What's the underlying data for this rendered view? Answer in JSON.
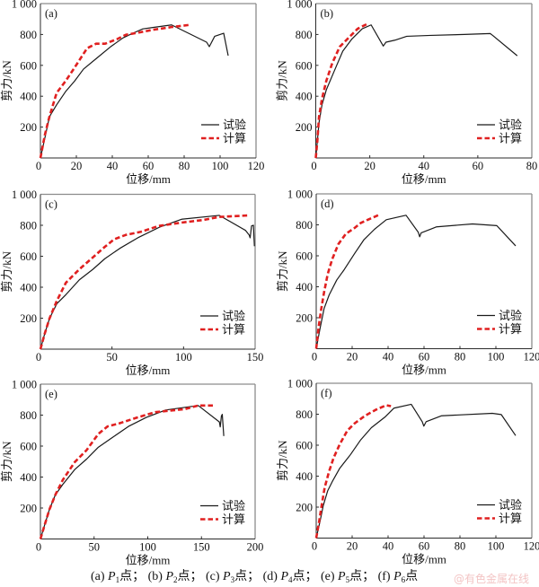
{
  "figure": {
    "caption": {
      "items": [
        {
          "label": "(a)",
          "var": "P",
          "sub": "1",
          "suffix": "点"
        },
        {
          "label": "(b)",
          "var": "P",
          "sub": "2",
          "suffix": "点"
        },
        {
          "label": "(c)",
          "var": "P",
          "sub": "3",
          "suffix": "点"
        },
        {
          "label": "(d)",
          "var": "P",
          "sub": "4",
          "suffix": "点"
        },
        {
          "label": "(e)",
          "var": "P",
          "sub": "5",
          "suffix": "点"
        },
        {
          "label": "(f)",
          "var": "P",
          "sub": "6",
          "suffix": "点"
        }
      ],
      "separator": "； "
    },
    "watermark": "@有色金属在线"
  },
  "chart_data": [
    {
      "type": "line",
      "panel_label": "(a)",
      "xlabel": "位移/mm",
      "ylabel": "剪力/kN",
      "xlim": [
        0,
        120
      ],
      "ylim": [
        0,
        1000
      ],
      "x_ticks": [
        0,
        20,
        40,
        60,
        80,
        100,
        120
      ],
      "y_ticks": [
        200,
        400,
        600,
        800,
        1000
      ],
      "y_tick_labels": [
        "200",
        "400",
        "600",
        "800",
        "1 000"
      ],
      "grid": false,
      "legend": "bottom-right",
      "series": [
        {
          "name": "试验",
          "style": "solid",
          "color": "#1a1a1a",
          "points": [
            [
              0,
              0
            ],
            [
              2.5,
              131
            ],
            [
              5,
              267
            ],
            [
              9,
              344
            ],
            [
              14,
              430
            ],
            [
              19,
              498
            ],
            [
              24,
              576
            ],
            [
              31,
              643
            ],
            [
              39,
              720
            ],
            [
              46,
              778
            ],
            [
              52,
              811
            ],
            [
              57,
              836
            ],
            [
              63,
              846
            ],
            [
              73,
              862
            ],
            [
              92.5,
              750
            ],
            [
              94,
              721
            ],
            [
              97,
              788
            ],
            [
              102,
              808
            ],
            [
              104.5,
              663
            ]
          ]
        },
        {
          "name": "计算",
          "style": "dashed",
          "color": "#e02020",
          "points": [
            [
              0,
              0
            ],
            [
              2.5,
              151
            ],
            [
              5,
              267
            ],
            [
              9,
              421
            ],
            [
              14,
              498
            ],
            [
              19,
              585
            ],
            [
              26,
              711
            ],
            [
              31,
              740
            ],
            [
              36,
              740
            ],
            [
              42.5,
              769
            ],
            [
              47.5,
              798
            ],
            [
              54,
              811
            ],
            [
              62.5,
              830
            ],
            [
              73,
              848
            ],
            [
              83,
              862
            ]
          ]
        }
      ]
    },
    {
      "type": "line",
      "panel_label": "(b)",
      "xlabel": "位移/mm",
      "ylabel": "剪力/kN",
      "xlim": [
        0,
        80
      ],
      "ylim": [
        0,
        1000
      ],
      "x_ticks": [
        0,
        20,
        40,
        60,
        80
      ],
      "y_ticks": [
        200,
        400,
        600,
        800,
        1000
      ],
      "y_tick_labels": [
        "200",
        "400",
        "600",
        "800",
        "1 000"
      ],
      "grid": false,
      "legend": "bottom-right",
      "series": [
        {
          "name": "试验",
          "style": "solid",
          "color": "#1a1a1a",
          "points": [
            [
              0,
              0
            ],
            [
              0.6,
              112
            ],
            [
              1.2,
              228
            ],
            [
              2.3,
              344
            ],
            [
              3.9,
              441
            ],
            [
              6.7,
              557
            ],
            [
              10,
              692
            ],
            [
              13.3,
              769
            ],
            [
              17.2,
              837
            ],
            [
              20.5,
              862
            ],
            [
              25,
              725
            ],
            [
              26,
              750
            ],
            [
              29.3,
              763
            ],
            [
              33.7,
              788
            ],
            [
              42.5,
              794
            ],
            [
              55,
              800
            ],
            [
              64.6,
              806
            ],
            [
              65.5,
              794
            ],
            [
              74.6,
              662
            ]
          ]
        },
        {
          "name": "计算",
          "style": "dashed",
          "color": "#e02020",
          "points": [
            [
              0,
              0
            ],
            [
              0.6,
              112
            ],
            [
              1.2,
              267
            ],
            [
              2.3,
              383
            ],
            [
              3.9,
              499
            ],
            [
              6.1,
              614
            ],
            [
              8.9,
              721
            ],
            [
              12.2,
              779
            ],
            [
              15.5,
              837
            ],
            [
              18.8,
              866
            ]
          ]
        }
      ]
    },
    {
      "type": "line",
      "panel_label": "(c)",
      "xlabel": "位移/mm",
      "ylabel": "剪力/kN",
      "xlim": [
        0,
        150
      ],
      "ylim": [
        0,
        1000
      ],
      "x_ticks": [
        0,
        50,
        100,
        150
      ],
      "y_ticks": [
        200,
        400,
        600,
        800,
        1000
      ],
      "y_tick_labels": [
        "200",
        "400",
        "600",
        "800",
        "1 000"
      ],
      "grid": false,
      "legend": "bottom-right",
      "series": [
        {
          "name": "试验",
          "style": "solid",
          "color": "#1a1a1a",
          "points": [
            [
              0,
              0
            ],
            [
              3,
              100
            ],
            [
              6.3,
              197
            ],
            [
              11.5,
              294
            ],
            [
              17.8,
              352
            ],
            [
              27.2,
              448
            ],
            [
              36.7,
              516
            ],
            [
              45,
              584
            ],
            [
              55.5,
              651
            ],
            [
              68,
              719
            ],
            [
              83,
              787
            ],
            [
              98.6,
              839
            ],
            [
              125,
              864
            ],
            [
              143.3,
              767
            ],
            [
              145.8,
              738
            ],
            [
              146.5,
              719
            ],
            [
              147.5,
              796
            ],
            [
              148.8,
              800
            ],
            [
              149.2,
              719
            ],
            [
              149.5,
              665
            ]
          ]
        },
        {
          "name": "计算",
          "style": "dashed",
          "color": "#e02020",
          "points": [
            [
              0,
              0
            ],
            [
              3,
              100
            ],
            [
              6.3,
              197
            ],
            [
              11.5,
              313
            ],
            [
              17.8,
              429
            ],
            [
              27.2,
              516
            ],
            [
              36.7,
              593
            ],
            [
              45,
              661
            ],
            [
              51.4,
              709
            ],
            [
              59.7,
              738
            ],
            [
              70.2,
              758
            ],
            [
              82.8,
              796
            ],
            [
              97.5,
              816
            ],
            [
              114.3,
              835
            ],
            [
              124.7,
              854
            ],
            [
              146,
              864
            ]
          ]
        }
      ]
    },
    {
      "type": "line",
      "panel_label": "(d)",
      "xlabel": "位移/mm",
      "ylabel": "剪力/kN",
      "xlim": [
        0,
        120
      ],
      "ylim": [
        0,
        1000
      ],
      "x_ticks": [
        0,
        20,
        40,
        60,
        80,
        100,
        120
      ],
      "y_ticks": [
        200,
        400,
        600,
        800,
        1000
      ],
      "y_tick_labels": [
        "200",
        "400",
        "600",
        "800",
        "1 000"
      ],
      "grid": false,
      "legend": "bottom-right",
      "series": [
        {
          "name": "试验",
          "style": "solid",
          "color": "#1a1a1a",
          "points": [
            [
              0,
              0
            ],
            [
              2.2,
              135
            ],
            [
              4.4,
              260
            ],
            [
              7.2,
              347
            ],
            [
              11.4,
              443
            ],
            [
              15.6,
              511
            ],
            [
              21.5,
              617
            ],
            [
              26.5,
              703
            ],
            [
              32.4,
              771
            ],
            [
              39,
              833
            ],
            [
              50,
              862
            ],
            [
              56.8,
              752
            ],
            [
              57.6,
              723
            ],
            [
              58.4,
              748
            ],
            [
              67,
              787
            ],
            [
              87,
              806
            ],
            [
              100.5,
              795
            ],
            [
              111,
              664
            ]
          ]
        },
        {
          "name": "计算",
          "style": "dashed",
          "color": "#e02020",
          "points": [
            [
              0,
              0
            ],
            [
              1.3,
              135
            ],
            [
              2.7,
              250
            ],
            [
              4.4,
              366
            ],
            [
              6.4,
              482
            ],
            [
              8.9,
              578
            ],
            [
              12.3,
              675
            ],
            [
              16.5,
              742
            ],
            [
              21.5,
              781
            ],
            [
              24.9,
              813
            ],
            [
              29.9,
              839
            ],
            [
              34.5,
              862
            ]
          ]
        }
      ]
    },
    {
      "type": "line",
      "panel_label": "(e)",
      "xlabel": "位移/mm",
      "ylabel": "剪力/kN",
      "xlim": [
        0,
        200
      ],
      "ylim": [
        0,
        1000
      ],
      "x_ticks": [
        0,
        50,
        100,
        150,
        200
      ],
      "y_ticks": [
        200,
        400,
        600,
        800,
        1000
      ],
      "y_tick_labels": [
        "200",
        "400",
        "600",
        "800",
        "1 000"
      ],
      "grid": false,
      "legend": "bottom-right",
      "series": [
        {
          "name": "试验",
          "style": "solid",
          "color": "#1a1a1a",
          "points": [
            [
              0,
              0
            ],
            [
              4,
              92
            ],
            [
              8.3,
              189
            ],
            [
              13.9,
              285
            ],
            [
              20.8,
              352
            ],
            [
              31.9,
              448
            ],
            [
              43,
              516
            ],
            [
              54,
              593
            ],
            [
              68,
              660
            ],
            [
              82,
              727
            ],
            [
              98.6,
              785
            ],
            [
              116.7,
              833
            ],
            [
              147,
              862
            ],
            [
              166.7,
              756
            ],
            [
              167.5,
              724
            ],
            [
              168.6,
              795
            ],
            [
              169.4,
              805
            ],
            [
              170.8,
              665
            ]
          ]
        },
        {
          "name": "计算",
          "style": "dashed",
          "color": "#e02020",
          "points": [
            [
              0,
              0
            ],
            [
              4,
              92
            ],
            [
              8.3,
              189
            ],
            [
              13.9,
              285
            ],
            [
              20.8,
              381
            ],
            [
              31.9,
              496
            ],
            [
              43,
              574
            ],
            [
              54,
              679
            ],
            [
              62.5,
              727
            ],
            [
              73.6,
              747
            ],
            [
              90.3,
              785
            ],
            [
              107,
              819
            ],
            [
              118,
              827
            ],
            [
              134.7,
              839
            ],
            [
              147,
              862
            ],
            [
              163,
              862
            ]
          ]
        }
      ]
    },
    {
      "type": "line",
      "panel_label": "(f)",
      "xlabel": "位移/mm",
      "ylabel": "剪力/kN",
      "xlim": [
        0,
        120
      ],
      "ylim": [
        0,
        1000
      ],
      "x_ticks": [
        0,
        20,
        40,
        60,
        80,
        100,
        120
      ],
      "y_ticks": [
        200,
        400,
        600,
        800,
        1000
      ],
      "y_tick_labels": [
        "200",
        "400",
        "600",
        "800",
        "1 000"
      ],
      "grid": false,
      "legend": "bottom-right",
      "series": [
        {
          "name": "试验",
          "style": "solid",
          "color": "#1a1a1a",
          "points": [
            [
              0,
              0
            ],
            [
              2.2,
              112
            ],
            [
              3.9,
              209
            ],
            [
              6.4,
              306
            ],
            [
              8.9,
              364
            ],
            [
              13.1,
              451
            ],
            [
              19,
              538
            ],
            [
              24.8,
              635
            ],
            [
              30.7,
              713
            ],
            [
              38.2,
              781
            ],
            [
              43.2,
              839
            ],
            [
              52.9,
              864
            ],
            [
              59,
              752
            ],
            [
              59.9,
              723
            ],
            [
              61.2,
              752
            ],
            [
              69.8,
              790
            ],
            [
              98,
              806
            ],
            [
              103,
              798
            ],
            [
              111,
              662
            ]
          ]
        },
        {
          "name": "计算",
          "style": "dashed",
          "color": "#e02020",
          "points": [
            [
              0,
              0
            ],
            [
              1.7,
              112
            ],
            [
              3,
              209
            ],
            [
              4.7,
              326
            ],
            [
              7.2,
              432
            ],
            [
              9.7,
              519
            ],
            [
              13.1,
              606
            ],
            [
              17.3,
              694
            ],
            [
              21.5,
              742
            ],
            [
              27.3,
              791
            ],
            [
              33.2,
              829
            ],
            [
              39,
              858
            ],
            [
              41.6,
              852
            ]
          ]
        }
      ]
    }
  ]
}
